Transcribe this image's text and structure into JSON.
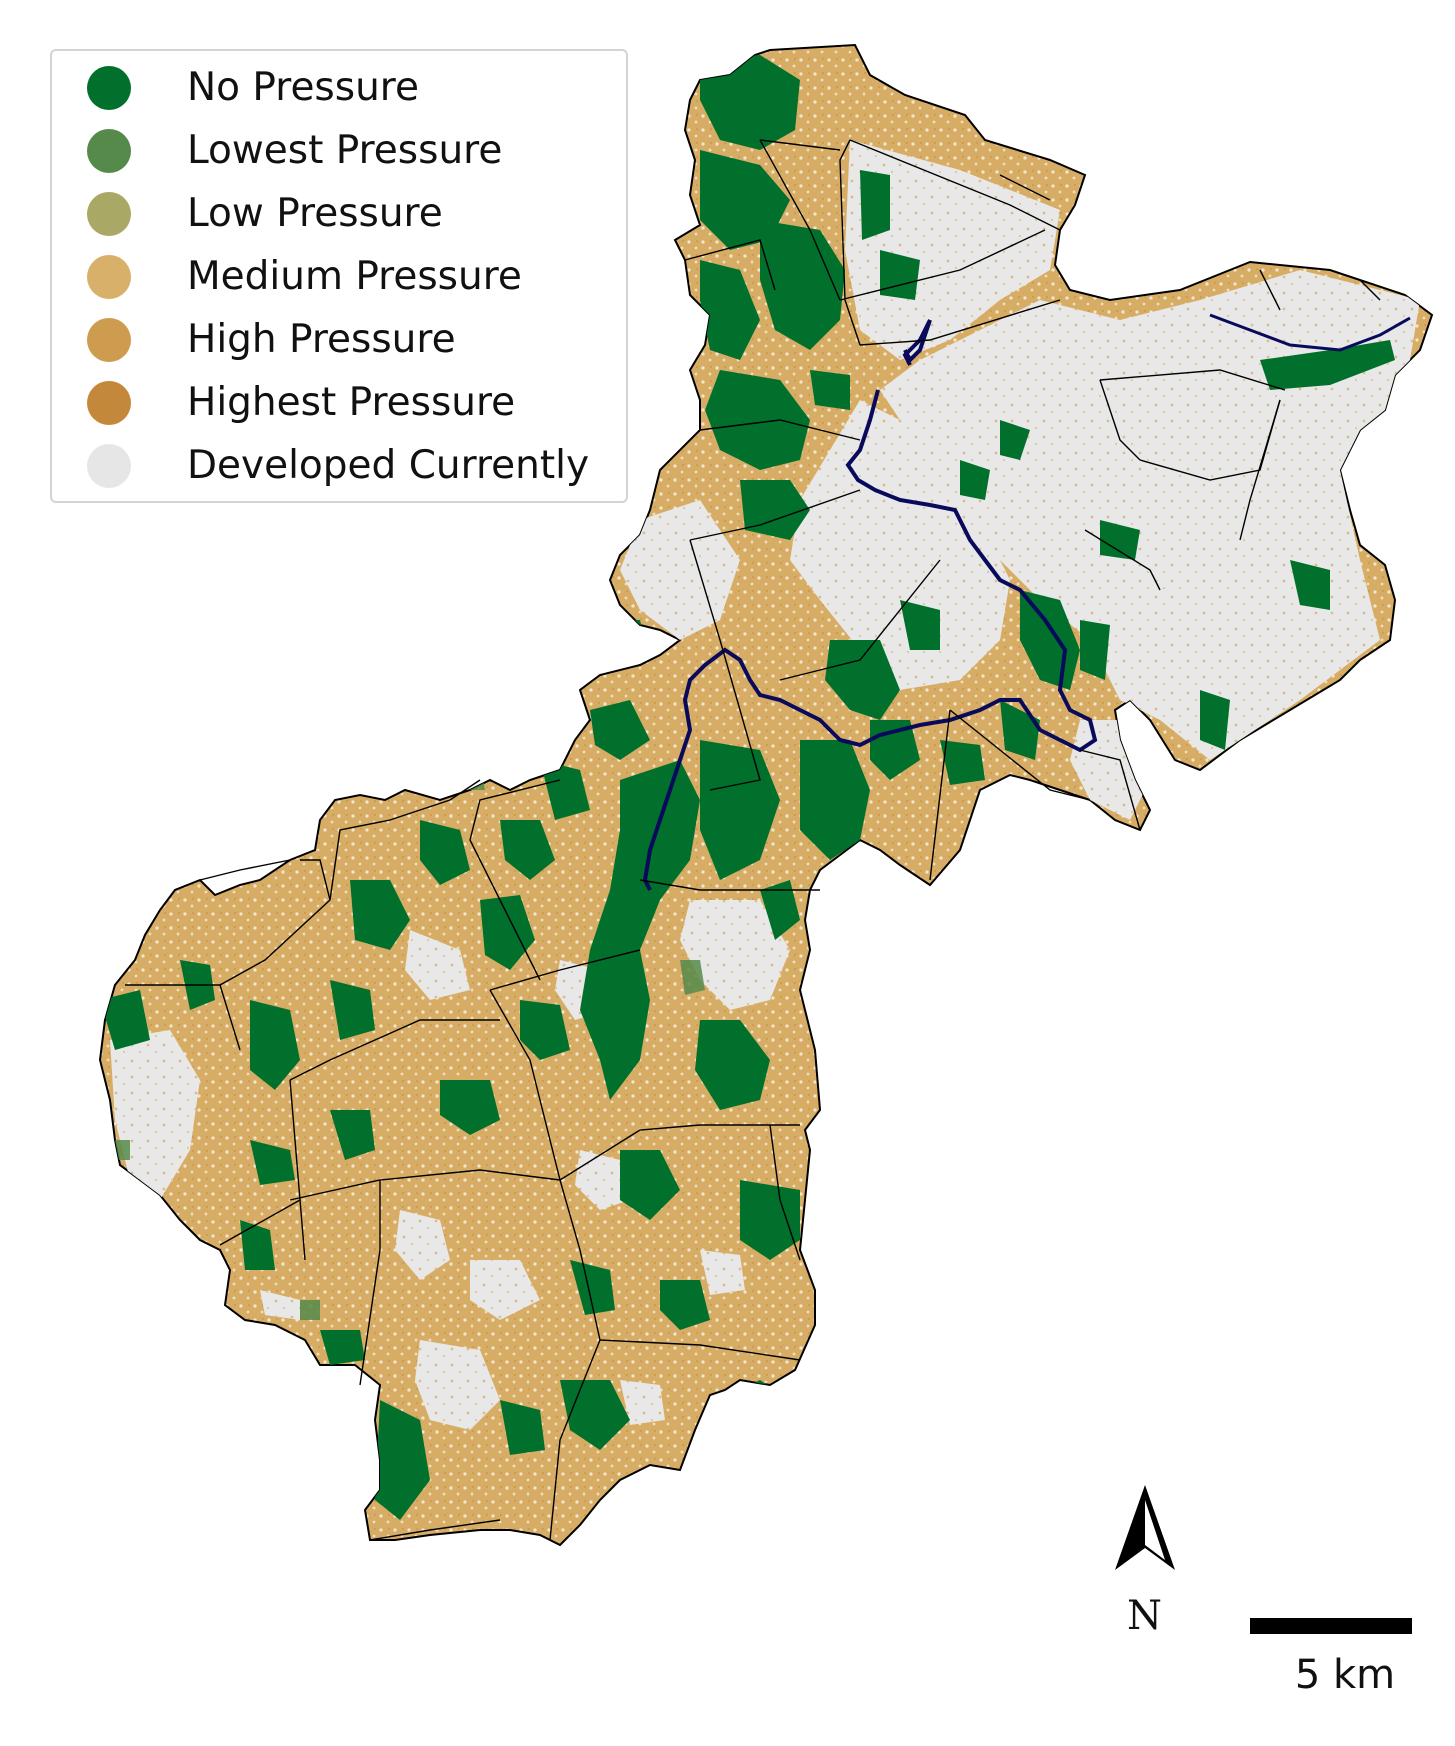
{
  "legend": {
    "items": [
      {
        "label": "No Pressure",
        "color": "#00702c"
      },
      {
        "label": "Lowest Pressure",
        "color": "#568a4a"
      },
      {
        "label": "Low Pressure",
        "color": "#aaa865"
      },
      {
        "label": "Medium Pressure",
        "color": "#d9b06a"
      },
      {
        "label": "High Pressure",
        "color": "#cd9c4f"
      },
      {
        "label": "Highest Pressure",
        "color": "#c38839"
      },
      {
        "label": "Developed Currently",
        "color": "#e6e6e6"
      }
    ]
  },
  "north_arrow": {
    "label": "N",
    "icon": "north-arrow-icon"
  },
  "scale_bar": {
    "label": "5 km"
  },
  "colors": {
    "boundary": "#000000",
    "river": "#0a0a5c",
    "background": "#ffffff"
  }
}
